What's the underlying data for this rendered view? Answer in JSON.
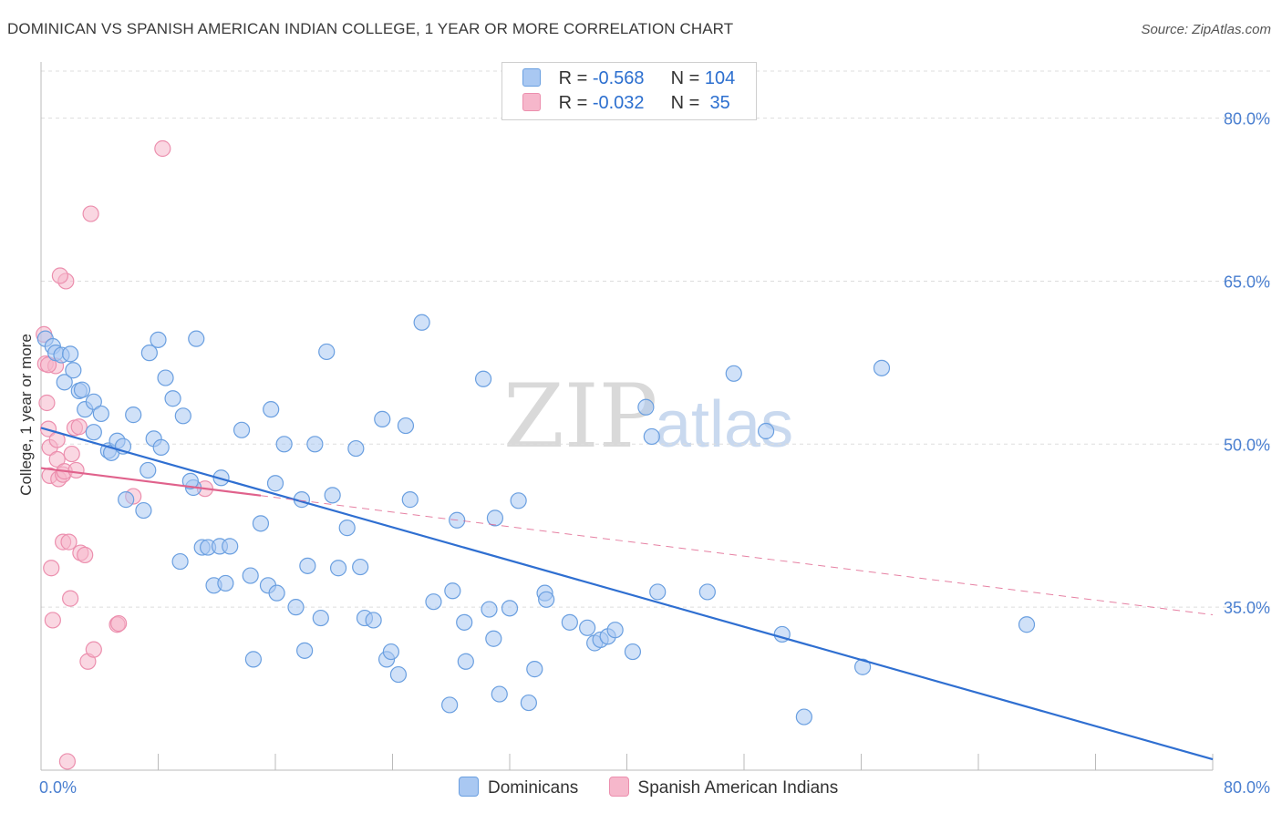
{
  "title": "DOMINICAN VS SPANISH AMERICAN INDIAN COLLEGE, 1 YEAR OR MORE CORRELATION CHART",
  "source": "Source: ZipAtlas.com",
  "watermark": {
    "zip": "ZIP",
    "atlas": "atlas"
  },
  "legend": {
    "rows": [
      {
        "r_label": "R = ",
        "r_value": "-0.568",
        "n_label": "N = ",
        "n_value": "104",
        "color": "#a9c8f2"
      },
      {
        "r_label": "R = ",
        "r_value": "-0.032",
        "n_label": "N = ",
        "n_value": " 35",
        "color": "#f6b7cb"
      }
    ]
  },
  "bottom_legend": [
    "Dominicans",
    "Spanish American Indians"
  ],
  "colors": {
    "blue_fill": "#a9c8f2",
    "blue_stroke": "#6a9fe0",
    "blue_line": "#2f6fd1",
    "pink_fill": "#f6b7cb",
    "pink_stroke": "#ec8fae",
    "pink_line": "#e0628c",
    "grid": "#dddddd",
    "axis": "#bbbbbb",
    "tick_label": "#4a7fd0"
  },
  "chart_data": {
    "type": "scatter",
    "title": "DOMINICAN VS SPANISH AMERICAN INDIAN COLLEGE, 1 YEAR OR MORE CORRELATION CHART",
    "xlabel": "",
    "ylabel": "College, 1 year or more",
    "xlim": [
      0,
      80
    ],
    "ylim": [
      20,
      85
    ],
    "x_ticks": [
      "0.0%",
      "80.0%"
    ],
    "y_ticks": [
      "35.0%",
      "50.0%",
      "65.0%",
      "80.0%"
    ],
    "y_tick_values": [
      35,
      50,
      65,
      80
    ],
    "grid": "horizontal dashed",
    "legend_placement": "top-center",
    "series": [
      {
        "name": "Dominicans",
        "r": -0.568,
        "n": 104,
        "trend": {
          "x": [
            0,
            80
          ],
          "y": [
            51.5,
            21.0
          ],
          "style": "solid"
        },
        "points": [
          [
            0.3,
            59.7
          ],
          [
            0.8,
            59.0
          ],
          [
            1.0,
            58.4
          ],
          [
            1.4,
            58.2
          ],
          [
            2.0,
            58.3
          ],
          [
            1.6,
            55.7
          ],
          [
            2.2,
            56.8
          ],
          [
            2.6,
            54.9
          ],
          [
            2.8,
            55.0
          ],
          [
            3.0,
            53.2
          ],
          [
            3.6,
            53.9
          ],
          [
            4.1,
            52.8
          ],
          [
            3.6,
            51.1
          ],
          [
            4.6,
            49.4
          ],
          [
            4.8,
            49.2
          ],
          [
            5.2,
            50.3
          ],
          [
            5.6,
            49.8
          ],
          [
            6.3,
            52.7
          ],
          [
            5.8,
            44.9
          ],
          [
            7.0,
            43.9
          ],
          [
            7.4,
            58.4
          ],
          [
            7.7,
            50.5
          ],
          [
            8.2,
            49.7
          ],
          [
            7.3,
            47.6
          ],
          [
            8.0,
            59.6
          ],
          [
            8.5,
            56.1
          ],
          [
            9.0,
            54.2
          ],
          [
            9.7,
            52.6
          ],
          [
            10.6,
            59.7
          ],
          [
            10.4,
            46.0
          ],
          [
            10.2,
            46.6
          ],
          [
            9.5,
            39.2
          ],
          [
            11.0,
            40.5
          ],
          [
            11.4,
            40.5
          ],
          [
            12.2,
            40.6
          ],
          [
            12.3,
            46.9
          ],
          [
            12.9,
            40.6
          ],
          [
            11.8,
            37.0
          ],
          [
            12.6,
            37.2
          ],
          [
            13.7,
            51.3
          ],
          [
            14.3,
            37.9
          ],
          [
            14.5,
            30.2
          ],
          [
            15.0,
            42.7
          ],
          [
            15.5,
            37.0
          ],
          [
            15.7,
            53.2
          ],
          [
            16.0,
            46.4
          ],
          [
            16.1,
            36.3
          ],
          [
            16.6,
            50.0
          ],
          [
            17.4,
            35.0
          ],
          [
            17.8,
            44.9
          ],
          [
            18.0,
            31.0
          ],
          [
            18.2,
            38.8
          ],
          [
            18.7,
            50.0
          ],
          [
            19.1,
            34.0
          ],
          [
            19.5,
            58.5
          ],
          [
            19.9,
            45.3
          ],
          [
            20.3,
            38.6
          ],
          [
            20.9,
            42.3
          ],
          [
            21.5,
            49.6
          ],
          [
            21.8,
            38.7
          ],
          [
            22.1,
            34.0
          ],
          [
            22.7,
            33.8
          ],
          [
            23.3,
            52.3
          ],
          [
            23.6,
            30.2
          ],
          [
            23.9,
            30.9
          ],
          [
            24.4,
            28.8
          ],
          [
            24.9,
            51.7
          ],
          [
            25.2,
            44.9
          ],
          [
            26.0,
            61.2
          ],
          [
            26.8,
            35.5
          ],
          [
            27.9,
            26.0
          ],
          [
            28.1,
            36.5
          ],
          [
            28.4,
            43.0
          ],
          [
            28.9,
            33.6
          ],
          [
            29.0,
            30.0
          ],
          [
            30.2,
            56.0
          ],
          [
            30.6,
            34.8
          ],
          [
            30.9,
            32.1
          ],
          [
            31.0,
            43.2
          ],
          [
            31.3,
            27.0
          ],
          [
            32.0,
            34.9
          ],
          [
            32.6,
            44.8
          ],
          [
            33.3,
            26.2
          ],
          [
            33.7,
            29.3
          ],
          [
            34.4,
            36.3
          ],
          [
            34.5,
            35.7
          ],
          [
            36.1,
            33.6
          ],
          [
            37.3,
            33.1
          ],
          [
            37.8,
            31.7
          ],
          [
            38.2,
            32.0
          ],
          [
            38.7,
            32.3
          ],
          [
            39.2,
            32.9
          ],
          [
            40.4,
            30.9
          ],
          [
            41.3,
            53.4
          ],
          [
            41.7,
            50.7
          ],
          [
            42.1,
            36.4
          ],
          [
            45.5,
            36.4
          ],
          [
            47.3,
            56.5
          ],
          [
            49.5,
            51.2
          ],
          [
            50.6,
            32.5
          ],
          [
            52.1,
            24.9
          ],
          [
            56.1,
            29.5
          ],
          [
            67.3,
            33.4
          ],
          [
            57.4,
            57.0
          ]
        ]
      },
      {
        "name": "Spanish American Indians",
        "r": -0.032,
        "n": 35,
        "trend": {
          "x": [
            0,
            80
          ],
          "y": [
            47.8,
            34.3
          ],
          "solid_until_x": 15,
          "style": "solid then dashed"
        },
        "points": [
          [
            0.2,
            60.1
          ],
          [
            0.3,
            57.4
          ],
          [
            0.4,
            53.8
          ],
          [
            0.5,
            51.4
          ],
          [
            0.6,
            49.7
          ],
          [
            0.6,
            47.1
          ],
          [
            0.7,
            38.6
          ],
          [
            0.8,
            33.8
          ],
          [
            1.0,
            57.2
          ],
          [
            1.1,
            50.4
          ],
          [
            1.1,
            48.6
          ],
          [
            1.2,
            46.8
          ],
          [
            1.5,
            41.0
          ],
          [
            1.5,
            47.2
          ],
          [
            1.6,
            47.5
          ],
          [
            1.7,
            65.0
          ],
          [
            2.1,
            49.1
          ],
          [
            2.3,
            51.5
          ],
          [
            2.4,
            47.6
          ],
          [
            2.6,
            51.6
          ],
          [
            2.7,
            40.0
          ],
          [
            3.0,
            39.8
          ],
          [
            3.2,
            30.0
          ],
          [
            3.4,
            71.2
          ],
          [
            3.6,
            31.1
          ],
          [
            1.3,
            65.5
          ],
          [
            1.9,
            41.0
          ],
          [
            2.0,
            35.8
          ],
          [
            5.2,
            33.4
          ],
          [
            5.3,
            33.5
          ],
          [
            6.3,
            45.2
          ],
          [
            8.3,
            77.2
          ],
          [
            1.8,
            20.8
          ],
          [
            0.5,
            57.3
          ],
          [
            11.2,
            45.9
          ]
        ]
      }
    ]
  }
}
